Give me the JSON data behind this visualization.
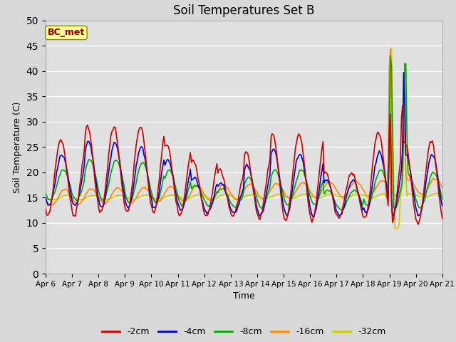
{
  "title": "Soil Temperatures Set B",
  "xlabel": "Time",
  "ylabel": "Soil Temperature (C)",
  "annotation": "BC_met",
  "ylim": [
    0,
    50
  ],
  "yticks": [
    0,
    5,
    10,
    15,
    20,
    25,
    30,
    35,
    40,
    45,
    50
  ],
  "x_labels": [
    "Apr 6",
    "Apr 7",
    "Apr 8",
    "Apr 9",
    "Apr 10",
    "Apr 11",
    "Apr 12",
    "Apr 13",
    "Apr 14",
    "Apr 15",
    "Apr 16",
    "Apr 17",
    "Apr 18",
    "Apr 19",
    "Apr 20",
    "Apr 21"
  ],
  "series_colors": [
    "#cc0000",
    "#0000cc",
    "#00aa00",
    "#ff8800",
    "#cccc00"
  ],
  "series_labels": [
    "-2cm",
    "-4cm",
    "-8cm",
    "-16cm",
    "-32cm"
  ],
  "line_width": 1.2,
  "background_color": "#e0e0e0",
  "grid_color": "#ffffff",
  "title_fontsize": 12,
  "fig_width": 6.4,
  "fig_height": 4.8,
  "dpi": 100
}
